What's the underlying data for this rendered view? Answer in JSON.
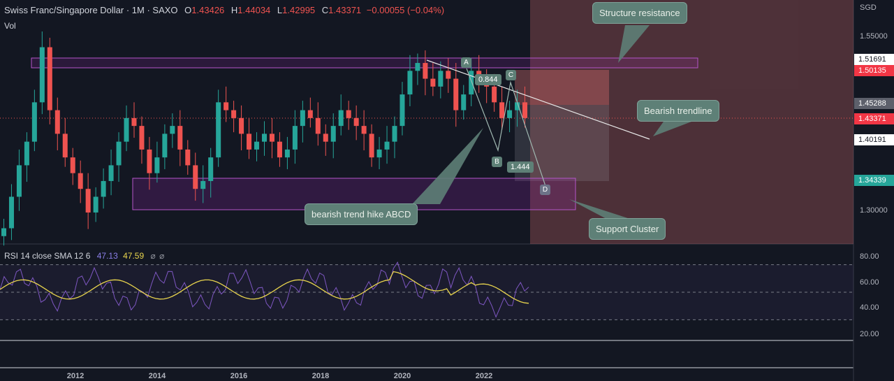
{
  "header": {
    "symbol": "Swiss Franc/Singapore Dollar · 1M · SAXO",
    "open_label": "O",
    "open": "1.43426",
    "high_label": "H",
    "high": "1.44034",
    "low_label": "L",
    "low": "1.42995",
    "close_label": "C",
    "close": "1.43371",
    "change": "−0.00055 (−0.04%)",
    "volume_label": "Vol"
  },
  "currency": "SGD",
  "price_axis": {
    "ticks": [
      "1.55000",
      "1.30000"
    ],
    "ticks_rsi": [
      "80.00",
      "60.00",
      "40.00",
      "20.00"
    ]
  },
  "price_boxes": [
    {
      "value": "1.51691",
      "bg": "#ffffff",
      "fg": "#131722"
    },
    {
      "value": "1.50135",
      "bg": "#f23645",
      "fg": "#ffffff"
    },
    {
      "value": "1.45288",
      "bg": "#5d606b",
      "fg": "#ffffff"
    },
    {
      "value": "1.43371",
      "bg": "#f23645",
      "fg": "#ffffff"
    },
    {
      "value": "1.40191",
      "bg": "#ffffff",
      "fg": "#131722"
    },
    {
      "value": "1.34339",
      "bg": "#26a69a",
      "fg": "#ffffff"
    }
  ],
  "x_axis": [
    "2012",
    "2014",
    "2016",
    "2018",
    "2020",
    "2022"
  ],
  "annotations": {
    "structure_resistance": "Structure resistance",
    "bearish_trendline": "Bearish trendline",
    "abcd": "bearish trend hike ABCD",
    "support_cluster": "Support Cluster",
    "ratio_1": "0.844",
    "ratio_2": "1.444",
    "point_a": "A",
    "point_b": "B",
    "point_c": "C",
    "point_d": "D"
  },
  "rsi": {
    "label": "RSI 14 close SMA 12 6",
    "value": "47.13",
    "sma": "47.59",
    "extra_1": "⌀",
    "extra_2": "⌀"
  },
  "colors": {
    "bull": "#26a69a",
    "bear": "#ef5350",
    "background": "#131722",
    "rsi_line": "#7e57c2",
    "rsi_sma": "#e8d44d",
    "zone_purple": "#9c27b0"
  },
  "chart_data": {
    "type": "candlestick",
    "series": [
      {
        "name": "CHF/SGD monthly",
        "close": [
          1.29,
          1.33,
          1.37,
          1.4,
          1.45,
          1.52,
          1.44,
          1.41,
          1.38,
          1.36,
          1.34,
          1.31,
          1.33,
          1.35,
          1.37,
          1.4,
          1.43,
          1.42,
          1.39,
          1.36,
          1.38,
          1.41,
          1.42,
          1.39,
          1.37,
          1.34,
          1.35,
          1.38,
          1.45,
          1.44,
          1.43,
          1.41,
          1.39,
          1.4,
          1.41,
          1.4,
          1.38,
          1.39,
          1.42,
          1.44,
          1.43,
          1.41,
          1.4,
          1.42,
          1.44,
          1.43,
          1.42,
          1.41,
          1.38,
          1.39,
          1.4,
          1.42,
          1.46,
          1.49,
          1.5,
          1.48,
          1.47,
          1.49,
          1.48,
          1.44,
          1.46,
          1.49,
          1.48,
          1.47,
          1.45,
          1.43,
          1.44,
          1.45,
          1.43
        ]
      }
    ],
    "rsi_series": [
      {
        "name": "RSI 14",
        "last": 47.13
      },
      {
        "name": "SMA 12",
        "last": 47.59
      }
    ],
    "rsi_levels": [
      70,
      50,
      30
    ],
    "ylim": [
      1.27,
      1.58
    ]
  }
}
